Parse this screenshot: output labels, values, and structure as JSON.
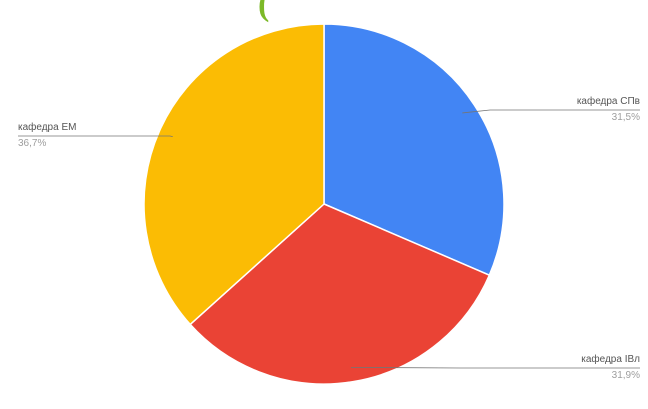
{
  "header": {
    "title_fragment": "("
  },
  "chart_data": {
    "type": "pie",
    "slices": [
      {
        "label": "кафедра СПв",
        "percent_label": "31,5%",
        "value": 31.5,
        "color": "#4285f4"
      },
      {
        "label": "кафедра ІВл",
        "percent_label": "31,9%",
        "value": 31.9,
        "color": "#ea4335"
      },
      {
        "label": "кафедра ЕМ",
        "percent_label": "36,7%",
        "value": 36.7,
        "color": "#fbbc04"
      }
    ],
    "start_angle_deg": 0,
    "direction": "clockwise",
    "legend": "none",
    "labels": "outside-with-leader-lines"
  }
}
